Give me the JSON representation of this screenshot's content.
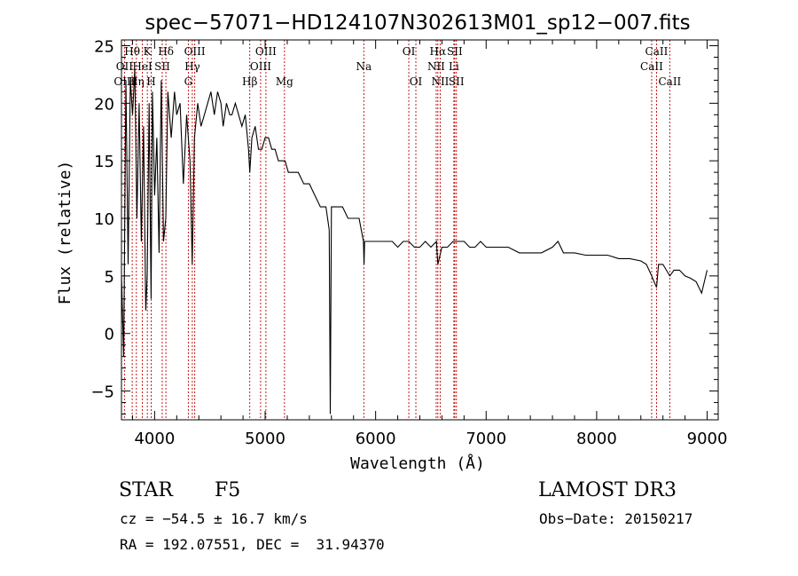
{
  "chart_data": {
    "type": "line",
    "title": "spec−57071−HD124107N302613M01_sp12−007.fits",
    "xlabel": "Wavelength (Å)",
    "ylabel": "Flux (relative)",
    "xlim": [
      3700,
      9100
    ],
    "ylim": [
      -7.5,
      25.5
    ],
    "x_ticks": [
      4000,
      5000,
      6000,
      7000,
      8000,
      9000
    ],
    "x_tick_labels": [
      "4000",
      "5000",
      "6000",
      "7000",
      "8000",
      "9000"
    ],
    "y_ticks": [
      -5,
      0,
      5,
      10,
      15,
      20,
      25
    ],
    "y_tick_labels": [
      "−5",
      "0",
      "5",
      "10",
      "15",
      "20",
      "25"
    ],
    "grid": false,
    "series": [
      {
        "name": "flux",
        "x": [
          3700,
          3720,
          3740,
          3760,
          3780,
          3800,
          3820,
          3840,
          3860,
          3880,
          3900,
          3920,
          3933,
          3950,
          3968,
          3980,
          4000,
          4020,
          4040,
          4060,
          4080,
          4101,
          4120,
          4150,
          4180,
          4200,
          4230,
          4260,
          4290,
          4320,
          4340,
          4360,
          4390,
          4420,
          4450,
          4480,
          4510,
          4540,
          4570,
          4600,
          4620,
          4650,
          4680,
          4700,
          4730,
          4760,
          4790,
          4820,
          4850,
          4861,
          4880,
          4910,
          4940,
          4970,
          5000,
          5030,
          5060,
          5090,
          5120,
          5150,
          5180,
          5210,
          5250,
          5300,
          5350,
          5400,
          5450,
          5500,
          5550,
          5580,
          5590,
          5600,
          5620,
          5650,
          5700,
          5750,
          5800,
          5850,
          5890,
          5895,
          5900,
          5920,
          5950,
          6000,
          6050,
          6100,
          6150,
          6200,
          6250,
          6300,
          6350,
          6400,
          6450,
          6500,
          6550,
          6563,
          6600,
          6650,
          6700,
          6750,
          6800,
          6850,
          6900,
          6950,
          7000,
          7100,
          7200,
          7300,
          7400,
          7500,
          7600,
          7650,
          7700,
          7800,
          7900,
          8000,
          8100,
          8200,
          8300,
          8400,
          8450,
          8498,
          8520,
          8542,
          8560,
          8600,
          8662,
          8700,
          8750,
          8800,
          8850,
          8900,
          8950,
          9000
        ],
        "y": [
          5,
          -2,
          22,
          6,
          22,
          19,
          23,
          10,
          20,
          8,
          18,
          2,
          5,
          20,
          3,
          21,
          12,
          17,
          7,
          22,
          8,
          10,
          21,
          17,
          21,
          19,
          20,
          13,
          19,
          15,
          6,
          17,
          20,
          18,
          19,
          20,
          21,
          19,
          21,
          20,
          18,
          20,
          19,
          19,
          20,
          19,
          18,
          19,
          16,
          14,
          17,
          18,
          16,
          16,
          17,
          17,
          16,
          16,
          15,
          15,
          15,
          14,
          14,
          14,
          13,
          13,
          12,
          11,
          11,
          9,
          -7,
          11,
          11,
          11,
          11,
          10,
          10,
          10,
          8,
          6,
          8,
          8,
          8,
          8,
          8,
          8,
          8,
          7.5,
          8,
          8,
          7.5,
          7.5,
          8,
          7.5,
          8,
          6,
          7.5,
          7.5,
          8,
          8,
          8,
          7.5,
          7.5,
          8,
          7.5,
          7.5,
          7.5,
          7,
          7,
          7,
          7.5,
          8,
          7,
          7,
          6.8,
          6.8,
          6.8,
          6.5,
          6.5,
          6.3,
          6,
          5,
          4.5,
          4,
          6,
          6,
          5,
          5.5,
          5.5,
          5,
          4.8,
          4.5,
          3.5,
          5.5
        ]
      }
    ],
    "line_annotations": [
      {
        "label": "Hθ",
        "x": 3797,
        "row": 1
      },
      {
        "label": "OII",
        "x": 3727,
        "row": 2
      },
      {
        "label": "OIII",
        "x": 3727,
        "row": 3
      },
      {
        "label": "K",
        "x": 3934,
        "row": 1
      },
      {
        "label": "HeI",
        "x": 3889,
        "row": 2
      },
      {
        "label": "Hη",
        "x": 3835,
        "row": 3
      },
      {
        "label": "Hδ",
        "x": 4102,
        "row": 1
      },
      {
        "label": "SII",
        "x": 4069,
        "row": 2
      },
      {
        "label": "H",
        "x": 3969,
        "row": 3
      },
      {
        "label": "OIII",
        "x": 4363,
        "row": 1
      },
      {
        "label": "Hγ",
        "x": 4341,
        "row": 2
      },
      {
        "label": "G",
        "x": 4305,
        "row": 3
      },
      {
        "label": "OIII",
        "x": 5007,
        "row": 1
      },
      {
        "label": "OIII",
        "x": 4959,
        "row": 2
      },
      {
        "label": "Hβ",
        "x": 4861,
        "row": 3
      },
      {
        "label": "Mg",
        "x": 5175,
        "row": 3
      },
      {
        "label": "Na",
        "x": 5893,
        "row": 2
      },
      {
        "label": "OI",
        "x": 6300,
        "row": 1
      },
      {
        "label": "OI",
        "x": 6364,
        "row": 3
      },
      {
        "label": "Hα",
        "x": 6563,
        "row": 1
      },
      {
        "label": "SII",
        "x": 6716,
        "row": 1
      },
      {
        "label": "NII",
        "x": 6548,
        "row": 2
      },
      {
        "label": "Li",
        "x": 6708,
        "row": 2
      },
      {
        "label": "NII",
        "x": 6584,
        "row": 3
      },
      {
        "label": "SII",
        "x": 6731,
        "row": 3
      },
      {
        "label": "CaII",
        "x": 8542,
        "row": 1
      },
      {
        "label": "CaII",
        "x": 8498,
        "row": 2
      },
      {
        "label": "CaII",
        "x": 8662,
        "row": 3
      }
    ]
  },
  "info": {
    "class_label": "STAR",
    "subclass": "F5",
    "survey": "LAMOST DR3",
    "redshift": "cz = −54.5 ± 16.7 km/s",
    "obs_date": "Obs−Date: 20150217",
    "coords": "RA = 192.07551, DEC =  31.94370"
  }
}
